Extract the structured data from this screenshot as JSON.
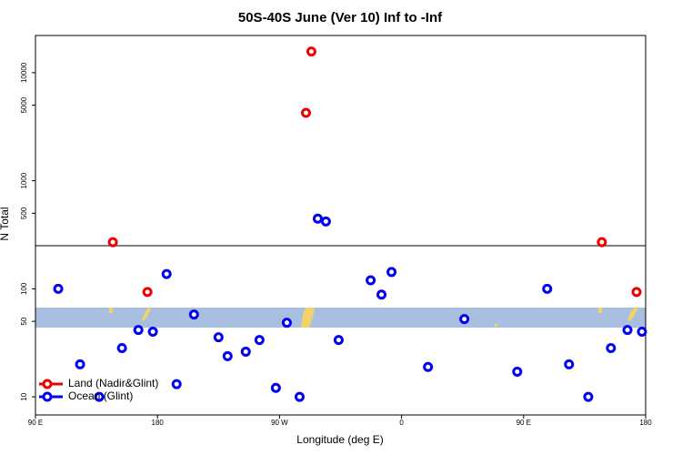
{
  "chart_data": {
    "type": "scatter",
    "title": "50S-40S June (Ver 10)   Inf to -Inf",
    "xlabel": "Longitude (deg E)",
    "ylabel": "N Total",
    "xlim": [
      90,
      540
    ],
    "xticks": [
      {
        "value": 90,
        "label": "90 E"
      },
      180,
      {
        "value": 270,
        "label": "90 W"
      },
      {
        "value": 360,
        "label": "0"
      },
      {
        "value": 450,
        "label": "90 E"
      },
      {
        "value": 540,
        "label": "180"
      }
    ],
    "ylim": [
      6.8,
      22100
    ],
    "yticks": [
      10,
      50,
      100,
      500,
      1000,
      5000,
      10000
    ],
    "log_y": true,
    "legend": "bottom-left",
    "series": [
      {
        "name": "Land (Nadir&Glint)",
        "color": "#ee0000",
        "x": [
          147.1,
          172.6,
          293.5,
          289.5,
          507.7,
          533.3
        ],
        "values": [
          270,
          93.5,
          15700,
          4250,
          270,
          93.5
        ]
      },
      {
        "name": "Ocean (Glint)",
        "color": "#0000ee",
        "x": [
          106.8,
          122.9,
          137.0,
          153.8,
          165.9,
          176.6,
          186.7,
          194.1,
          206.9,
          225.0,
          231.7,
          245.1,
          255.2,
          267.3,
          275.4,
          284.8,
          298.2,
          304.2,
          313.6,
          337.2,
          345.2,
          352.6,
          379.5,
          406.3,
          445.3,
          467.4,
          483.5,
          497.7,
          514.4,
          526.6,
          537.3
        ],
        "values": [
          100,
          20,
          10,
          28.3,
          41.6,
          40.1,
          137,
          13.1,
          57.8,
          35.6,
          23.8,
          26.2,
          33.6,
          12.1,
          48.5,
          10,
          446,
          420,
          33.6,
          120,
          88.3,
          143,
          18.9,
          52.5,
          17.1,
          100,
          20,
          10,
          28.3,
          41.6,
          40.1
        ]
      }
    ]
  }
}
